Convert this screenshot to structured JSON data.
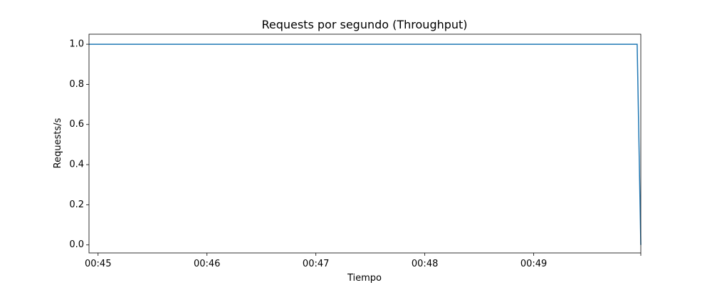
{
  "chart_data": {
    "type": "line",
    "title": "Requests por segundo (Throughput)",
    "xlabel": "Tiempo",
    "ylabel": "Requests/s",
    "ylim": [
      -0.04,
      1.05
    ],
    "xlim": [
      "00:44:55",
      "00:49:59"
    ],
    "y_ticks": [
      "0.0",
      "0.2",
      "0.4",
      "0.6",
      "0.8",
      "1.0"
    ],
    "x_ticks": [
      {
        "time": "00:45:00",
        "label": "00:45"
      },
      {
        "time": "00:46:00",
        "label": "00:46"
      },
      {
        "time": "00:47:00",
        "label": "00:47"
      },
      {
        "time": "00:48:00",
        "label": "00:48"
      },
      {
        "time": "00:49:00",
        "label": "00:49"
      },
      {
        "time": "00:49:59",
        "label": ""
      }
    ],
    "grid": false,
    "legend": "none",
    "series": [
      {
        "color": "#1f77b4",
        "points": [
          {
            "x": "00:44:55",
            "y": 1
          },
          {
            "x": "00:49:57",
            "y": 1
          },
          {
            "x": "00:49:59",
            "y": 0
          }
        ]
      }
    ]
  }
}
